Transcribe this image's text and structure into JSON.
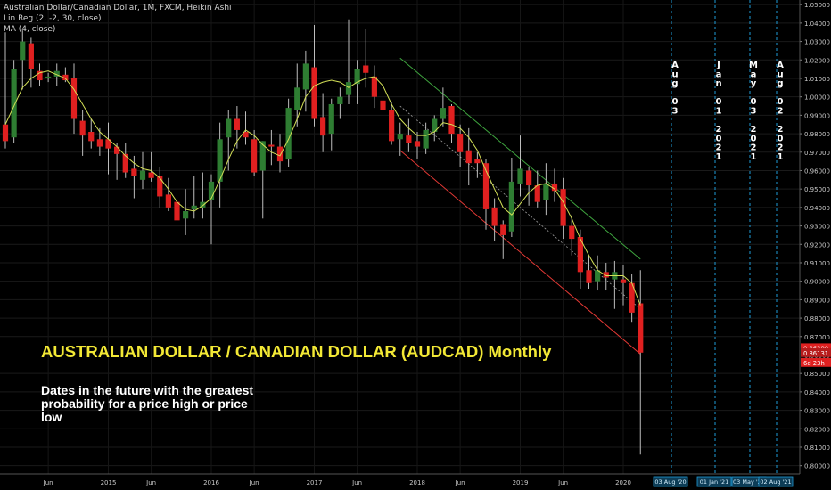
{
  "legend": {
    "symbol": "Australian Dollar/Canadian Dollar, 1M, FXCM, Heikin Ashi",
    "linreg": "Lin Reg (2, -2, 30, close)",
    "ma": "MA (4, close)"
  },
  "annotation": {
    "title": "AUSTRALIAN DOLLAR / CANADIAN DOLLAR (AUDCAD) Monthly",
    "subtitle": "Dates in the future with the greatest probability for a price high or price low"
  },
  "colors": {
    "background": "#000000",
    "up_candle": "#2e7d32",
    "down_candle": "#e02020",
    "wick": "#bdbdbd",
    "ma_line": "#d4e157",
    "channel_upper": "#3fa63f",
    "channel_lower": "#e53935",
    "channel_mid": "#9e9e9e",
    "future_line": "#1e9bd7",
    "date_text": "#ffffff",
    "axis_text": "#c8c8c8"
  },
  "chart_data": {
    "type": "candlestick",
    "style": "Heikin Ashi",
    "interval": "1M",
    "source": "FXCM",
    "ylim": [
      0.7955,
      1.0525
    ],
    "y_ticks": [
      "0.80000",
      "0.81000",
      "0.82000",
      "0.83000",
      "0.84000",
      "0.85000",
      "0.86000",
      "0.87000",
      "0.88000",
      "0.89000",
      "0.90000",
      "0.91000",
      "0.92000",
      "0.93000",
      "0.94000",
      "0.95000",
      "0.96000",
      "0.97000",
      "0.98000",
      "0.99000",
      "1.00000",
      "1.01000",
      "1.02000",
      "1.03000",
      "1.04000",
      "1.05000"
    ],
    "x_ticks": [
      "Jun",
      "2015",
      "Jun",
      "2016",
      "Jun",
      "2017",
      "Jun",
      "2018",
      "Jun",
      "2019",
      "Jun",
      "2020"
    ],
    "x_tick_months": [
      5,
      12,
      17,
      24,
      29,
      36,
      41,
      48,
      53,
      60,
      65,
      72
    ],
    "first_month": "2014-01",
    "candles": [
      {
        "o": 0.985,
        "h": 1.035,
        "l": 0.972,
        "c": 0.976
      },
      {
        "o": 0.978,
        "h": 1.02,
        "l": 0.975,
        "c": 1.015
      },
      {
        "o": 1.02,
        "h": 1.036,
        "l": 1.004,
        "c": 1.03
      },
      {
        "o": 1.029,
        "h": 1.032,
        "l": 1.005,
        "c": 1.015
      },
      {
        "o": 1.014,
        "h": 1.018,
        "l": 1.006,
        "c": 1.009
      },
      {
        "o": 1.01,
        "h": 1.013,
        "l": 1.008,
        "c": 1.011
      },
      {
        "o": 1.011,
        "h": 1.018,
        "l": 1.006,
        "c": 1.014
      },
      {
        "o": 1.012,
        "h": 1.016,
        "l": 1.008,
        "c": 1.009
      },
      {
        "o": 1.01,
        "h": 1.018,
        "l": 0.98,
        "c": 0.988
      },
      {
        "o": 0.987,
        "h": 0.993,
        "l": 0.968,
        "c": 0.979
      },
      {
        "o": 0.981,
        "h": 0.988,
        "l": 0.972,
        "c": 0.976
      },
      {
        "o": 0.977,
        "h": 0.983,
        "l": 0.968,
        "c": 0.973
      },
      {
        "o": 0.977,
        "h": 0.986,
        "l": 0.958,
        "c": 0.972
      },
      {
        "o": 0.973,
        "h": 0.975,
        "l": 0.955,
        "c": 0.969
      },
      {
        "o": 0.969,
        "h": 0.975,
        "l": 0.956,
        "c": 0.959
      },
      {
        "o": 0.961,
        "h": 0.968,
        "l": 0.945,
        "c": 0.957
      },
      {
        "o": 0.955,
        "h": 0.97,
        "l": 0.95,
        "c": 0.96
      },
      {
        "o": 0.959,
        "h": 0.97,
        "l": 0.954,
        "c": 0.956
      },
      {
        "o": 0.957,
        "h": 0.962,
        "l": 0.94,
        "c": 0.946
      },
      {
        "o": 0.947,
        "h": 0.956,
        "l": 0.938,
        "c": 0.94
      },
      {
        "o": 0.943,
        "h": 0.947,
        "l": 0.916,
        "c": 0.933
      },
      {
        "o": 0.934,
        "h": 0.95,
        "l": 0.925,
        "c": 0.938
      },
      {
        "o": 0.939,
        "h": 0.957,
        "l": 0.934,
        "c": 0.941
      },
      {
        "o": 0.94,
        "h": 0.959,
        "l": 0.934,
        "c": 0.943
      },
      {
        "o": 0.944,
        "h": 0.958,
        "l": 0.92,
        "c": 0.954
      },
      {
        "o": 0.954,
        "h": 0.986,
        "l": 0.94,
        "c": 0.977
      },
      {
        "o": 0.978,
        "h": 0.993,
        "l": 0.96,
        "c": 0.988
      },
      {
        "o": 0.988,
        "h": 0.995,
        "l": 0.972,
        "c": 0.982
      },
      {
        "o": 0.981,
        "h": 0.992,
        "l": 0.974,
        "c": 0.978
      },
      {
        "o": 0.977,
        "h": 0.982,
        "l": 0.957,
        "c": 0.959
      },
      {
        "o": 0.96,
        "h": 0.976,
        "l": 0.934,
        "c": 0.976
      },
      {
        "o": 0.974,
        "h": 0.982,
        "l": 0.963,
        "c": 0.973
      },
      {
        "o": 0.973,
        "h": 0.98,
        "l": 0.959,
        "c": 0.965
      },
      {
        "o": 0.966,
        "h": 0.999,
        "l": 0.962,
        "c": 0.994
      },
      {
        "o": 0.993,
        "h": 1.018,
        "l": 0.984,
        "c": 1.005
      },
      {
        "o": 1.004,
        "h": 1.025,
        "l": 0.992,
        "c": 1.018
      },
      {
        "o": 1.016,
        "h": 1.039,
        "l": 0.984,
        "c": 0.988
      },
      {
        "o": 0.989,
        "h": 1.002,
        "l": 0.97,
        "c": 0.979
      },
      {
        "o": 0.98,
        "h": 0.999,
        "l": 0.971,
        "c": 0.996
      },
      {
        "o": 0.996,
        "h": 1.005,
        "l": 0.988,
        "c": 1.0
      },
      {
        "o": 1.001,
        "h": 1.042,
        "l": 0.996,
        "c": 1.008
      },
      {
        "o": 1.007,
        "h": 1.02,
        "l": 0.996,
        "c": 1.015
      },
      {
        "o": 1.017,
        "h": 1.037,
        "l": 1.005,
        "c": 1.013
      },
      {
        "o": 1.011,
        "h": 1.017,
        "l": 0.994,
        "c": 1.0
      },
      {
        "o": 0.998,
        "h": 1.003,
        "l": 0.988,
        "c": 0.993
      },
      {
        "o": 0.993,
        "h": 0.997,
        "l": 0.974,
        "c": 0.976
      },
      {
        "o": 0.977,
        "h": 0.986,
        "l": 0.968,
        "c": 0.98
      },
      {
        "o": 0.979,
        "h": 0.988,
        "l": 0.97,
        "c": 0.975
      },
      {
        "o": 0.976,
        "h": 0.981,
        "l": 0.966,
        "c": 0.973
      },
      {
        "o": 0.972,
        "h": 0.986,
        "l": 0.969,
        "c": 0.982
      },
      {
        "o": 0.981,
        "h": 0.99,
        "l": 0.976,
        "c": 0.988
      },
      {
        "o": 0.988,
        "h": 1.005,
        "l": 0.984,
        "c": 0.994
      },
      {
        "o": 0.995,
        "h": 0.996,
        "l": 0.975,
        "c": 0.98
      },
      {
        "o": 0.98,
        "h": 0.985,
        "l": 0.962,
        "c": 0.97
      },
      {
        "o": 0.971,
        "h": 0.983,
        "l": 0.952,
        "c": 0.964
      },
      {
        "o": 0.966,
        "h": 0.97,
        "l": 0.956,
        "c": 0.964
      },
      {
        "o": 0.964,
        "h": 0.966,
        "l": 0.928,
        "c": 0.939
      },
      {
        "o": 0.94,
        "h": 0.945,
        "l": 0.922,
        "c": 0.93
      },
      {
        "o": 0.931,
        "h": 0.933,
        "l": 0.912,
        "c": 0.925
      },
      {
        "o": 0.927,
        "h": 0.967,
        "l": 0.924,
        "c": 0.954
      },
      {
        "o": 0.953,
        "h": 0.979,
        "l": 0.946,
        "c": 0.961
      },
      {
        "o": 0.96,
        "h": 0.962,
        "l": 0.941,
        "c": 0.952
      },
      {
        "o": 0.952,
        "h": 0.96,
        "l": 0.94,
        "c": 0.943
      },
      {
        "o": 0.944,
        "h": 0.964,
        "l": 0.936,
        "c": 0.953
      },
      {
        "o": 0.953,
        "h": 0.961,
        "l": 0.943,
        "c": 0.949
      },
      {
        "o": 0.95,
        "h": 0.956,
        "l": 0.923,
        "c": 0.93
      },
      {
        "o": 0.93,
        "h": 0.936,
        "l": 0.914,
        "c": 0.923
      },
      {
        "o": 0.924,
        "h": 0.928,
        "l": 0.896,
        "c": 0.905
      },
      {
        "o": 0.906,
        "h": 0.914,
        "l": 0.896,
        "c": 0.899
      },
      {
        "o": 0.9,
        "h": 0.914,
        "l": 0.895,
        "c": 0.906
      },
      {
        "o": 0.905,
        "h": 0.91,
        "l": 0.895,
        "c": 0.902
      },
      {
        "o": 0.901,
        "h": 0.911,
        "l": 0.885,
        "c": 0.905
      },
      {
        "o": 0.901,
        "h": 0.909,
        "l": 0.887,
        "c": 0.899
      },
      {
        "o": 0.899,
        "h": 0.904,
        "l": 0.878,
        "c": 0.883
      },
      {
        "o": 0.888,
        "h": 0.906,
        "l": 0.806,
        "c": 0.8613
      }
    ],
    "ma": [
      0.985,
      0.995,
      1.005,
      1.01,
      1.013,
      1.014,
      1.012,
      1.01,
      1.004,
      0.996,
      0.988,
      0.981,
      0.977,
      0.973,
      0.968,
      0.964,
      0.961,
      0.96,
      0.956,
      0.95,
      0.943,
      0.939,
      0.938,
      0.941,
      0.945,
      0.955,
      0.966,
      0.976,
      0.982,
      0.979,
      0.974,
      0.97,
      0.968,
      0.977,
      0.988,
      1.0,
      1.006,
      1.008,
      1.009,
      1.008,
      1.005,
      1.008,
      1.01,
      1.011,
      1.006,
      0.996,
      0.988,
      0.983,
      0.979,
      0.979,
      0.981,
      0.986,
      0.985,
      0.983,
      0.978,
      0.971,
      0.96,
      0.95,
      0.94,
      0.936,
      0.942,
      0.948,
      0.952,
      0.953,
      0.95,
      0.943,
      0.934,
      0.923,
      0.914,
      0.906,
      0.903,
      0.903,
      0.903,
      0.899,
      0.887
    ],
    "channel": {
      "upper": {
        "from_month": 46,
        "from_value": 1.021,
        "to_month": 74,
        "to_value": 0.912
      },
      "middle": {
        "from_month": 46,
        "from_value": 0.995,
        "to_month": 74,
        "to_value": 0.885
      },
      "lower": {
        "from_month": 46,
        "from_value": 0.971,
        "to_month": 74,
        "to_value": 0.8605
      }
    },
    "last_price": "0.86131",
    "price_labels": [
      "0.86390",
      "0.86131",
      "6d 23h"
    ],
    "future_dates": [
      {
        "vertical": [
          "A",
          "u",
          "g",
          "",
          "0",
          "3"
        ],
        "axis_label": "03 Aug '20"
      },
      {
        "vertical": [
          "J",
          "a",
          "n",
          "",
          "0",
          "1",
          "",
          "2",
          "0",
          "2",
          "1"
        ],
        "axis_label": "01 Jan '21"
      },
      {
        "vertical": [
          "M",
          "a",
          "y",
          "",
          "0",
          "3",
          "",
          "2",
          "0",
          "2",
          "1"
        ],
        "axis_label": "03 May '21"
      },
      {
        "vertical": [
          "A",
          "u",
          "g",
          "",
          "0",
          "2",
          "",
          "2",
          "0",
          "2",
          "1"
        ],
        "axis_label": "02 Aug '21"
      }
    ]
  }
}
